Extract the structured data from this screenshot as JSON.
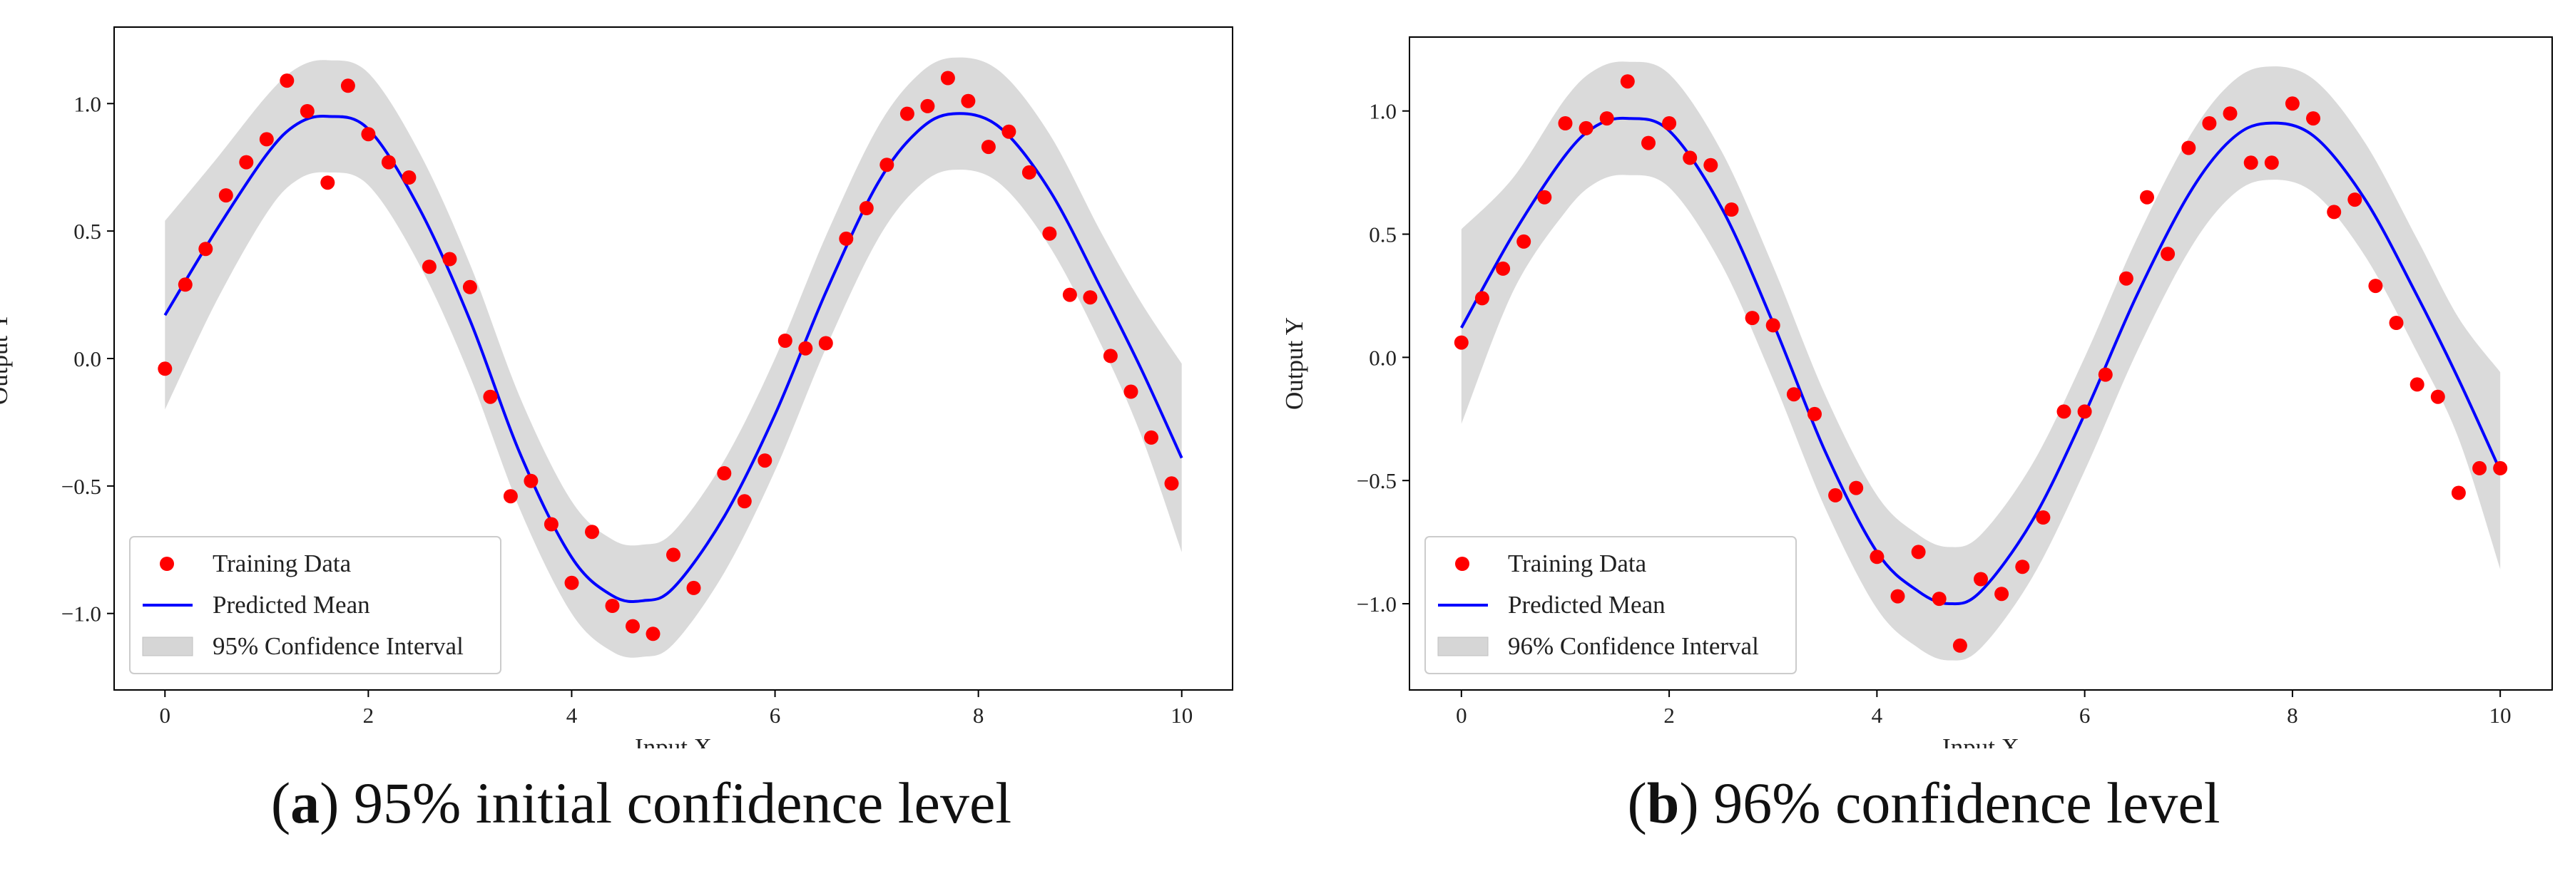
{
  "captions": [
    {
      "letter": "a",
      "text": "95% initial confidence level"
    },
    {
      "letter": "b",
      "text": "96% confidence level"
    }
  ],
  "chart_data": [
    {
      "type": "line",
      "title": "",
      "xlabel": "Input X",
      "ylabel": "Output Y",
      "xlim": [
        -0.5,
        10.5
      ],
      "ylim": [
        -1.3,
        1.3
      ],
      "xticks": [
        0,
        2,
        4,
        6,
        8,
        10
      ],
      "xtick_labels": [
        "0",
        "2",
        "4",
        "6",
        "8",
        "10"
      ],
      "yticks": [
        -1.0,
        -0.5,
        0.0,
        0.5,
        1.0
      ],
      "ytick_labels": [
        "−1.0",
        "−0.5",
        "0.0",
        "0.5",
        "1.0"
      ],
      "grid": false,
      "legend_position": "lower-left",
      "legend": [
        "Training Data",
        "Predicted Mean",
        "95% Confidence Interval"
      ],
      "colors": {
        "points": "#ff0000",
        "mean": "#0000ff",
        "band": "#d6d6d6"
      },
      "series": [
        {
          "name": "Training Data",
          "kind": "scatter",
          "x": [
            0.0,
            0.2,
            0.4,
            0.6,
            0.8,
            1.0,
            1.2,
            1.4,
            1.6,
            1.8,
            2.0,
            2.2,
            2.4,
            2.6,
            2.8,
            3.0,
            3.2,
            3.4,
            3.6,
            3.8,
            4.0,
            4.2,
            4.4,
            4.6,
            4.8,
            5.0,
            5.2,
            5.5,
            5.7,
            5.9,
            6.1,
            6.3,
            6.5,
            6.7,
            6.9,
            7.1,
            7.3,
            7.5,
            7.7,
            7.9,
            8.1,
            8.3,
            8.5,
            8.7,
            8.9,
            9.1,
            9.3,
            9.5,
            9.7,
            9.9
          ],
          "y": [
            -0.04,
            0.29,
            0.43,
            0.64,
            0.77,
            0.86,
            1.09,
            0.97,
            0.69,
            1.07,
            0.88,
            0.77,
            0.71,
            0.36,
            0.39,
            0.28,
            -0.15,
            -0.54,
            -0.48,
            -0.65,
            -0.88,
            -0.68,
            -0.97,
            -1.05,
            -1.08,
            -0.77,
            -0.9,
            -0.45,
            -0.56,
            -0.4,
            0.07,
            0.04,
            0.06,
            0.47,
            0.59,
            0.76,
            0.96,
            0.99,
            1.1,
            1.01,
            0.83,
            0.89,
            0.73,
            0.49,
            0.25,
            0.24,
            0.01,
            -0.13,
            -0.31,
            -0.49
          ]
        },
        {
          "name": "Predicted Mean",
          "kind": "line",
          "x": [
            0,
            0.5,
            1.0,
            1.3,
            1.6,
            2.0,
            2.5,
            3.0,
            3.5,
            4.0,
            4.4,
            4.7,
            5.0,
            5.5,
            6.0,
            6.5,
            7.0,
            7.4,
            7.75,
            8.2,
            8.7,
            9.2,
            9.6,
            10.0
          ],
          "y": [
            0.17,
            0.5,
            0.8,
            0.92,
            0.95,
            0.9,
            0.59,
            0.15,
            -0.38,
            -0.78,
            -0.93,
            -0.95,
            -0.9,
            -0.62,
            -0.22,
            0.26,
            0.68,
            0.89,
            0.96,
            0.91,
            0.66,
            0.28,
            -0.04,
            -0.39
          ]
        },
        {
          "name": "95% Confidence Interval",
          "kind": "band",
          "x": [
            0,
            0.5,
            1.0,
            1.3,
            1.6,
            2.0,
            2.5,
            3.0,
            3.5,
            4.0,
            4.4,
            4.7,
            5.0,
            5.5,
            6.0,
            6.5,
            7.0,
            7.4,
            7.75,
            8.2,
            8.7,
            9.2,
            9.6,
            10.0
          ],
          "lower": [
            -0.2,
            0.22,
            0.57,
            0.7,
            0.73,
            0.68,
            0.37,
            -0.07,
            -0.6,
            -1.0,
            -1.15,
            -1.17,
            -1.12,
            -0.84,
            -0.44,
            0.04,
            0.46,
            0.67,
            0.74,
            0.69,
            0.44,
            0.06,
            -0.3,
            -0.76
          ],
          "upper": [
            0.54,
            0.78,
            1.03,
            1.14,
            1.17,
            1.12,
            0.81,
            0.37,
            -0.16,
            -0.56,
            -0.71,
            -0.73,
            -0.68,
            -0.4,
            0.0,
            0.48,
            0.9,
            1.11,
            1.18,
            1.13,
            0.88,
            0.5,
            0.22,
            -0.02
          ]
        }
      ]
    },
    {
      "type": "line",
      "title": "",
      "xlabel": "Input X",
      "ylabel": "Output Y",
      "xlim": [
        -0.5,
        10.5
      ],
      "ylim": [
        -1.35,
        1.3
      ],
      "xticks": [
        0,
        2,
        4,
        6,
        8,
        10
      ],
      "xtick_labels": [
        "0",
        "2",
        "4",
        "6",
        "8",
        "10"
      ],
      "yticks": [
        -1.0,
        -0.5,
        0.0,
        0.5,
        1.0
      ],
      "ytick_labels": [
        "−1.0",
        "−0.5",
        "0.0",
        "0.5",
        "1.0"
      ],
      "grid": false,
      "legend_position": "lower-left",
      "legend": [
        "Training Data",
        "Predicted Mean",
        "96% Confidence Interval"
      ],
      "colors": {
        "points": "#ff0000",
        "mean": "#0000ff",
        "band": "#d6d6d6"
      },
      "series": [
        {
          "name": "Training Data",
          "kind": "scatter",
          "x": [
            0.0,
            0.2,
            0.4,
            0.6,
            0.8,
            1.0,
            1.2,
            1.4,
            1.6,
            1.8,
            2.0,
            2.2,
            2.4,
            2.6,
            2.8,
            3.0,
            3.2,
            3.4,
            3.6,
            3.8,
            4.0,
            4.2,
            4.4,
            4.6,
            4.8,
            5.0,
            5.2,
            5.4,
            5.6,
            5.8,
            6.0,
            6.2,
            6.4,
            6.6,
            6.8,
            7.0,
            7.2,
            7.4,
            7.6,
            7.8,
            8.0,
            8.2,
            8.4,
            8.6,
            8.8,
            9.0,
            9.2,
            9.4,
            9.6,
            9.8,
            10.0
          ],
          "y": [
            0.06,
            0.24,
            0.36,
            0.47,
            0.65,
            0.95,
            0.93,
            0.97,
            1.12,
            0.87,
            0.95,
            0.81,
            0.78,
            0.6,
            0.16,
            0.13,
            -0.15,
            -0.23,
            -0.56,
            -0.53,
            -0.81,
            -0.97,
            -0.79,
            -0.98,
            -1.17,
            -0.9,
            -0.96,
            -0.85,
            -0.65,
            -0.22,
            -0.22,
            -0.07,
            0.32,
            0.65,
            0.42,
            0.85,
            0.95,
            0.99,
            0.79,
            0.79,
            1.03,
            0.97,
            0.59,
            0.64,
            0.29,
            0.14,
            -0.11,
            -0.16,
            -0.55,
            -0.45,
            -0.45
          ]
        },
        {
          "name": "Predicted Mean",
          "kind": "line",
          "x": [
            0,
            0.5,
            1.0,
            1.3,
            1.6,
            2.0,
            2.5,
            3.0,
            3.5,
            4.0,
            4.4,
            4.7,
            5.0,
            5.5,
            6.0,
            6.5,
            7.0,
            7.4,
            7.75,
            8.2,
            8.7,
            9.2,
            9.6,
            10.0
          ],
          "y": [
            0.12,
            0.5,
            0.82,
            0.94,
            0.97,
            0.92,
            0.61,
            0.14,
            -0.38,
            -0.79,
            -0.95,
            -1.0,
            -0.95,
            -0.66,
            -0.23,
            0.25,
            0.66,
            0.88,
            0.95,
            0.9,
            0.64,
            0.25,
            -0.09,
            -0.46
          ]
        },
        {
          "name": "96% Confidence Interval",
          "kind": "band",
          "x": [
            0,
            0.5,
            1.0,
            1.3,
            1.6,
            2.0,
            2.5,
            3.0,
            3.5,
            4.0,
            4.4,
            4.7,
            5.0,
            5.5,
            6.0,
            6.5,
            7.0,
            7.4,
            7.75,
            8.2,
            8.7,
            9.2,
            9.6,
            10.0
          ],
          "lower": [
            -0.27,
            0.27,
            0.59,
            0.71,
            0.74,
            0.69,
            0.38,
            -0.09,
            -0.61,
            -1.02,
            -1.18,
            -1.23,
            -1.18,
            -0.89,
            -0.46,
            0.02,
            0.43,
            0.65,
            0.72,
            0.67,
            0.41,
            0.02,
            -0.33,
            -0.86
          ],
          "upper": [
            0.52,
            0.73,
            1.05,
            1.17,
            1.2,
            1.15,
            0.84,
            0.37,
            -0.15,
            -0.56,
            -0.72,
            -0.77,
            -0.72,
            -0.43,
            0.0,
            0.48,
            0.89,
            1.11,
            1.18,
            1.13,
            0.87,
            0.48,
            0.16,
            -0.06
          ]
        }
      ]
    }
  ]
}
